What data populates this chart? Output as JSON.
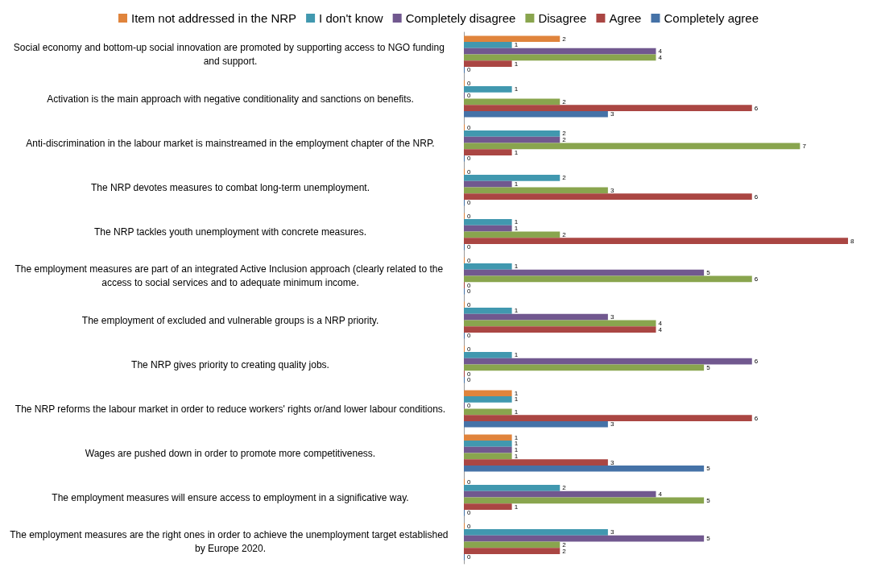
{
  "chart_data": {
    "type": "bar",
    "orientation": "horizontal",
    "data_labels": true,
    "legend": "top",
    "grid": false,
    "categories": [
      "Social economy and bottom-up social innovation are promoted by supporting access to NGO funding and support.",
      "Activation is the main approach with negative conditionality and sanctions on benefits.",
      "Anti-discrimination in the labour market is mainstreamed in the employment chapter of the NRP.",
      "The NRP devotes measures to combat long-term unemployment.",
      "The NRP tackles youth unemployment with concrete measures.",
      "The employment measures are part of an integrated Active Inclusion approach (clearly related to the access to social services and to adequate minimum income.",
      "The employment of excluded and vulnerable groups is a NRP priority.",
      "The NRP gives priority to creating quality jobs.",
      "The NRP reforms the labour market in order to reduce workers' rights or/and lower labour conditions.",
      "Wages are pushed down in order to promote more competitiveness.",
      "The employment measures will ensure access to employment in a significative way.",
      "The employment measures are the right ones in order to achieve the unemployment target established by Europe 2020."
    ],
    "series": [
      {
        "name": "Item not addressed in the NRP",
        "color": "#e0843c",
        "values": [
          2,
          0,
          0,
          0,
          0,
          0,
          0,
          0,
          1,
          1,
          0,
          0
        ]
      },
      {
        "name": "I don't know",
        "color": "#4198af",
        "values": [
          1,
          1,
          2,
          2,
          1,
          1,
          1,
          1,
          1,
          1,
          2,
          3
        ]
      },
      {
        "name": "Completely disagree",
        "color": "#71588f",
        "values": [
          4,
          0,
          2,
          1,
          1,
          5,
          3,
          6,
          0,
          1,
          4,
          5
        ]
      },
      {
        "name": "Disagree",
        "color": "#89a54e",
        "values": [
          4,
          2,
          7,
          3,
          2,
          6,
          4,
          5,
          1,
          1,
          5,
          2
        ]
      },
      {
        "name": "Agree",
        "color": "#aa4643",
        "values": [
          1,
          6,
          1,
          6,
          8,
          0,
          4,
          0,
          6,
          3,
          1,
          2
        ]
      },
      {
        "name": "Completely agree",
        "color": "#4572a7",
        "values": [
          0,
          3,
          0,
          0,
          0,
          0,
          0,
          0,
          3,
          5,
          0,
          0
        ]
      }
    ]
  }
}
